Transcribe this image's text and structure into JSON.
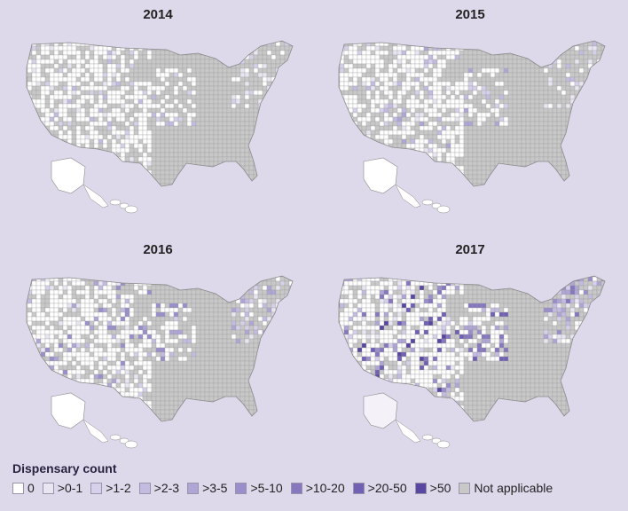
{
  "panels": [
    {
      "year": "2014",
      "level": 1
    },
    {
      "year": "2015",
      "level": 1.3
    },
    {
      "year": "2016",
      "level": 2
    },
    {
      "year": "2017",
      "level": 3
    }
  ],
  "legend": {
    "title": "Dispensary count",
    "items": [
      {
        "label": "0",
        "color": "#ffffff"
      },
      {
        "label": ">0-1",
        "color": "#e9e6f2"
      },
      {
        "label": ">1-2",
        "color": "#d6d0ea"
      },
      {
        "label": ">2-3",
        "color": "#c3bbe0"
      },
      {
        "label": ">3-5",
        "color": "#afa6d6"
      },
      {
        "label": ">5-10",
        "color": "#9b8fcb"
      },
      {
        "label": ">10-20",
        "color": "#8677bf"
      },
      {
        "label": ">20-50",
        "color": "#7160b3"
      },
      {
        "label": ">50",
        "color": "#5a47a1"
      },
      {
        "label": "Not applicable",
        "color": "#c8c8c8"
      }
    ]
  },
  "colors": {
    "background": "#ddd8ea",
    "not_applicable": "#c8c8c8",
    "zero": "#ffffff",
    "border": "#8a8a8a"
  }
}
